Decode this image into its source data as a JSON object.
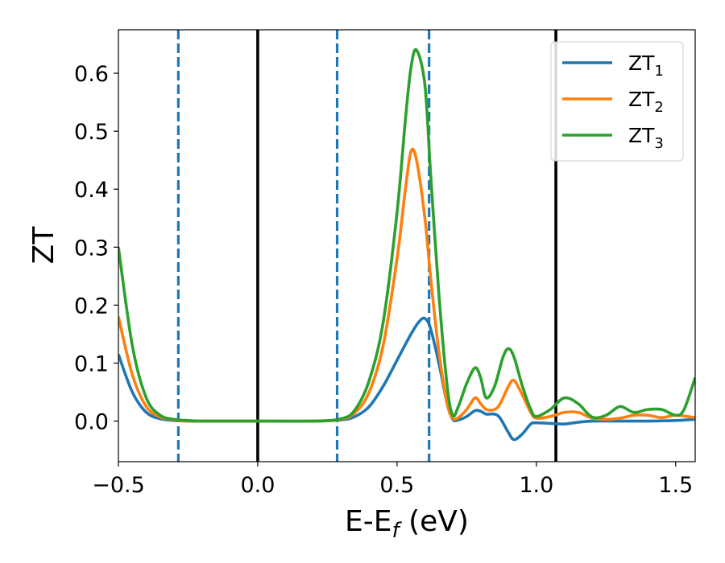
{
  "chart_data": {
    "type": "line",
    "xlabel": "E-E",
    "xlabel_sub": "f",
    "xlabel_unit": " (eV)",
    "ylabel": "ZT",
    "xlim": [
      -0.5,
      1.57
    ],
    "ylim": [
      -0.07,
      0.675
    ],
    "x_ticks": [
      -0.5,
      0.0,
      0.5,
      1.0,
      1.5
    ],
    "x_tick_labels": [
      "−0.5",
      "0.0",
      "0.5",
      "1.0",
      "1.5"
    ],
    "y_ticks": [
      0.0,
      0.1,
      0.2,
      0.3,
      0.4,
      0.5,
      0.6
    ],
    "y_tick_labels": [
      "0.0",
      "0.1",
      "0.2",
      "0.3",
      "0.4",
      "0.5",
      "0.6"
    ],
    "grid": false,
    "legend_position": "top-right",
    "vertical_lines": [
      {
        "x": -0.285,
        "style": "dashed",
        "color": "#1f77b4"
      },
      {
        "x": 0.0,
        "style": "solid",
        "color": "#000000"
      },
      {
        "x": 0.285,
        "style": "dashed",
        "color": "#1f77b4"
      },
      {
        "x": 0.615,
        "style": "dashed",
        "color": "#1f77b4"
      },
      {
        "x": 1.07,
        "style": "solid",
        "color": "#000000"
      }
    ],
    "series": [
      {
        "name": "ZT",
        "name_sub": "1",
        "color": "#1f77b4",
        "x": [
          -0.5,
          -0.45,
          -0.4,
          -0.35,
          -0.3,
          -0.25,
          -0.2,
          0.0,
          0.2,
          0.3,
          0.35,
          0.4,
          0.45,
          0.5,
          0.55,
          0.58,
          0.6,
          0.62,
          0.65,
          0.68,
          0.7,
          0.72,
          0.75,
          0.78,
          0.8,
          0.82,
          0.85,
          0.87,
          0.9,
          0.92,
          0.95,
          0.98,
          1.0,
          1.05,
          1.1,
          1.15,
          1.2,
          1.3,
          1.4,
          1.5,
          1.57
        ],
        "y": [
          0.115,
          0.05,
          0.015,
          0.004,
          0.001,
          0.0,
          0.0,
          0.0,
          0.0,
          0.002,
          0.008,
          0.025,
          0.06,
          0.105,
          0.15,
          0.172,
          0.177,
          0.16,
          0.1,
          0.03,
          0.003,
          0.002,
          0.008,
          0.018,
          0.017,
          0.012,
          0.012,
          0.005,
          -0.02,
          -0.032,
          -0.022,
          -0.005,
          -0.003,
          -0.004,
          -0.005,
          -0.002,
          0.0,
          0.0,
          0.0,
          0.001,
          0.003
        ]
      },
      {
        "name": "ZT",
        "name_sub": "2",
        "color": "#ff7f0e",
        "x": [
          -0.5,
          -0.45,
          -0.4,
          -0.35,
          -0.3,
          -0.25,
          -0.2,
          0.0,
          0.2,
          0.3,
          0.35,
          0.4,
          0.45,
          0.5,
          0.53,
          0.55,
          0.57,
          0.6,
          0.62,
          0.65,
          0.68,
          0.7,
          0.72,
          0.75,
          0.78,
          0.8,
          0.82,
          0.85,
          0.87,
          0.9,
          0.92,
          0.95,
          0.98,
          1.0,
          1.05,
          1.1,
          1.15,
          1.2,
          1.25,
          1.3,
          1.35,
          1.4,
          1.45,
          1.5,
          1.57
        ],
        "y": [
          0.18,
          0.08,
          0.025,
          0.007,
          0.002,
          0.0,
          0.0,
          0.0,
          0.0,
          0.003,
          0.015,
          0.05,
          0.13,
          0.28,
          0.4,
          0.465,
          0.45,
          0.35,
          0.25,
          0.12,
          0.03,
          0.005,
          0.006,
          0.02,
          0.04,
          0.03,
          0.02,
          0.02,
          0.03,
          0.06,
          0.07,
          0.045,
          0.015,
          0.005,
          0.008,
          0.015,
          0.015,
          0.005,
          0.003,
          0.005,
          0.01,
          0.01,
          0.006,
          0.01,
          0.006
        ]
      },
      {
        "name": "ZT",
        "name_sub": "3",
        "color": "#2ca02c",
        "x": [
          -0.5,
          -0.45,
          -0.4,
          -0.35,
          -0.3,
          -0.25,
          -0.2,
          0.0,
          0.2,
          0.3,
          0.35,
          0.4,
          0.45,
          0.5,
          0.53,
          0.55,
          0.57,
          0.6,
          0.62,
          0.65,
          0.68,
          0.7,
          0.72,
          0.75,
          0.78,
          0.8,
          0.82,
          0.85,
          0.88,
          0.9,
          0.92,
          0.95,
          0.98,
          1.0,
          1.05,
          1.1,
          1.15,
          1.2,
          1.25,
          1.3,
          1.35,
          1.4,
          1.45,
          1.5,
          1.53,
          1.57
        ],
        "y": [
          0.3,
          0.13,
          0.04,
          0.01,
          0.003,
          0.001,
          0.0,
          0.0,
          0.0,
          0.004,
          0.02,
          0.07,
          0.17,
          0.36,
          0.52,
          0.61,
          0.64,
          0.58,
          0.43,
          0.22,
          0.06,
          0.01,
          0.025,
          0.065,
          0.092,
          0.075,
          0.04,
          0.06,
          0.11,
          0.125,
          0.11,
          0.06,
          0.02,
          0.008,
          0.02,
          0.04,
          0.03,
          0.007,
          0.01,
          0.025,
          0.015,
          0.02,
          0.02,
          0.01,
          0.02,
          0.075
        ]
      }
    ]
  }
}
